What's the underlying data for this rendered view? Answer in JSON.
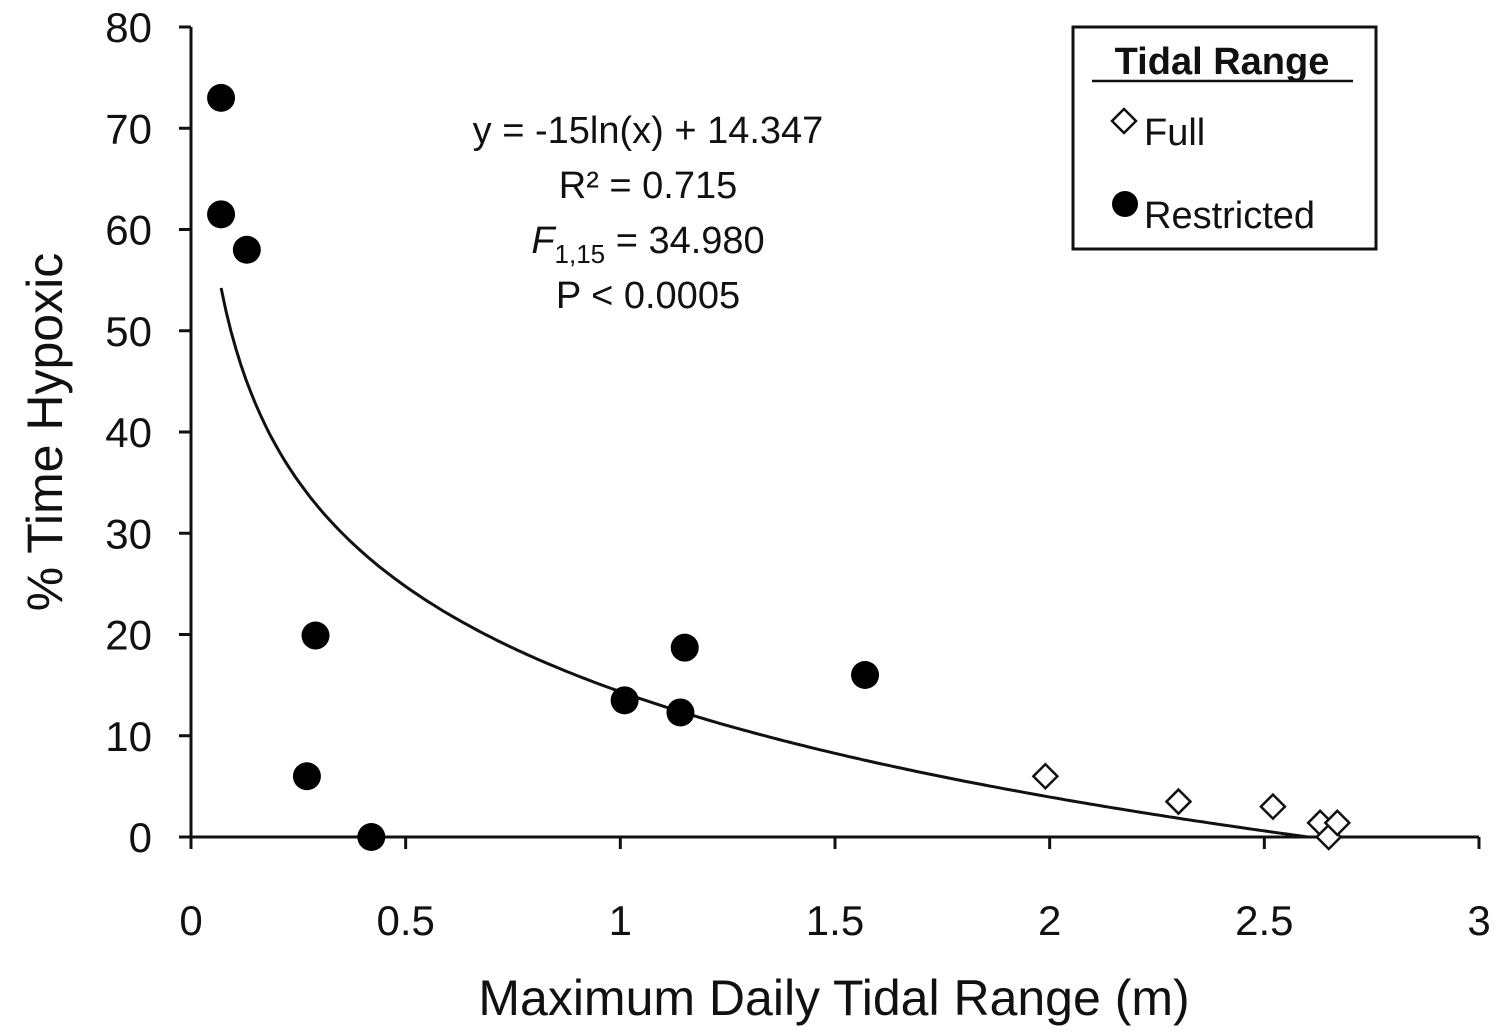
{
  "chart_data": {
    "type": "scatter",
    "xlabel": "Maximum Daily Tidal Range (m)",
    "ylabel": "% Time Hypoxic",
    "xlim": [
      0,
      3
    ],
    "ylim": [
      0,
      80
    ],
    "x_ticks": [
      "0",
      "0.5",
      "1",
      "1.5",
      "2",
      "2.5",
      "3"
    ],
    "y_ticks": [
      "0",
      "10",
      "20",
      "30",
      "40",
      "50",
      "60",
      "70",
      "80"
    ],
    "grid": false,
    "legend": {
      "title": "Tidal Range",
      "placement": "top-right",
      "entries": [
        "Full",
        "Restricted"
      ]
    },
    "series": [
      {
        "name": "Full",
        "marker": "open-diamond",
        "points": [
          {
            "x": 1.99,
            "y": 6.0
          },
          {
            "x": 2.3,
            "y": 3.5
          },
          {
            "x": 2.52,
            "y": 3.0
          },
          {
            "x": 2.63,
            "y": 1.4
          },
          {
            "x": 2.65,
            "y": 0.0
          },
          {
            "x": 2.67,
            "y": 1.4
          }
        ]
      },
      {
        "name": "Restricted",
        "marker": "filled-circle",
        "points": [
          {
            "x": 0.07,
            "y": 73.0
          },
          {
            "x": 0.07,
            "y": 61.5
          },
          {
            "x": 0.13,
            "y": 58.0
          },
          {
            "x": 0.29,
            "y": 19.9
          },
          {
            "x": 0.27,
            "y": 6.0
          },
          {
            "x": 0.42,
            "y": 0.0
          },
          {
            "x": 1.01,
            "y": 13.5
          },
          {
            "x": 1.14,
            "y": 12.3
          },
          {
            "x": 1.15,
            "y": 18.7
          },
          {
            "x": 1.57,
            "y": 16.0
          }
        ]
      }
    ],
    "fit": {
      "equation": "y = -15ln(x) + 14.347",
      "a": -15,
      "b": 14.347,
      "x_start": 0.07,
      "x_end": 2.6
    },
    "annotations": {
      "line1": "y = -15ln(x) + 14.347",
      "line2": "R² = 0.715",
      "line3_f": "F",
      "line3_sub": "1,15",
      "line3_rest": " = 34.980",
      "line4": "P < 0.0005"
    }
  }
}
